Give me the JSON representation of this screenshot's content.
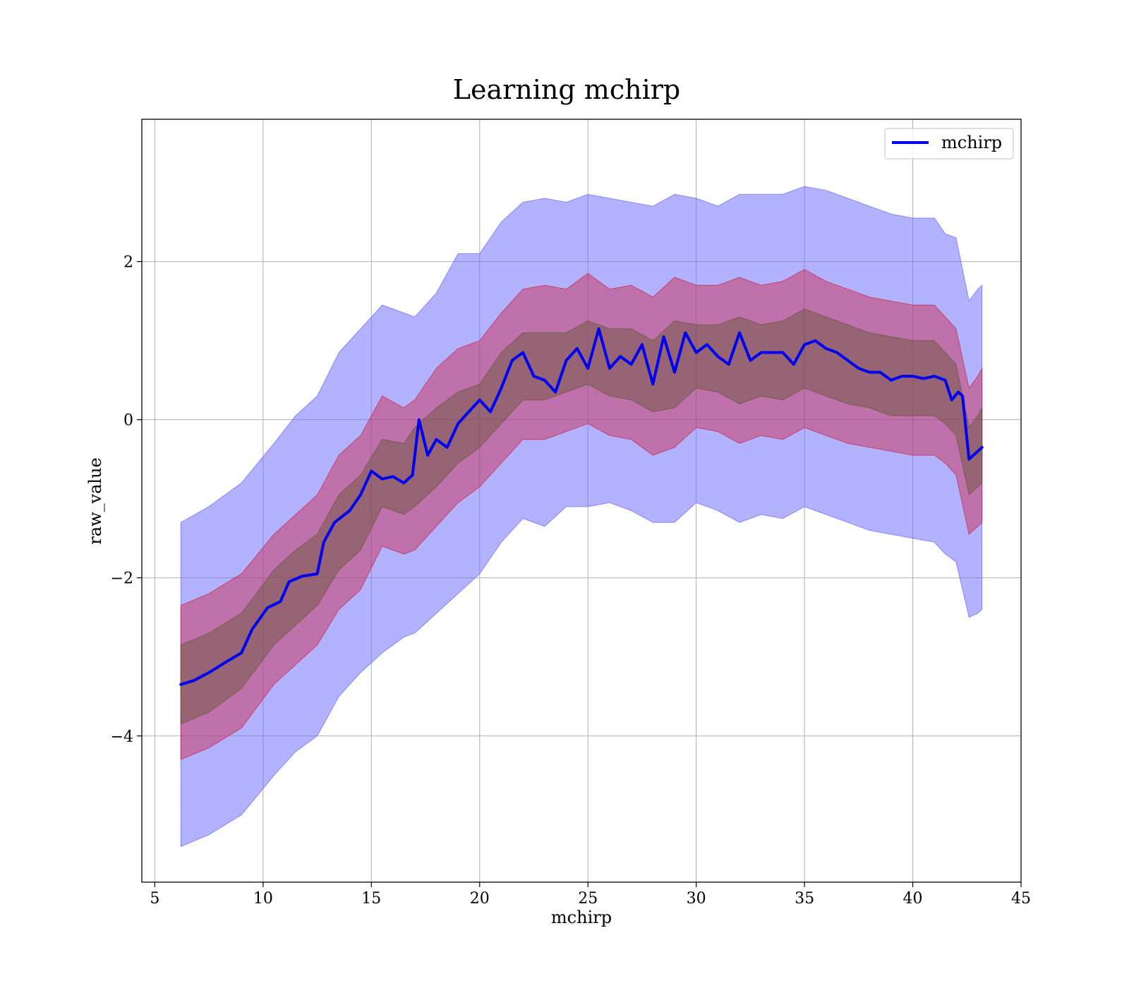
{
  "chart_data": {
    "type": "line",
    "title": "Learning mchirp",
    "xlabel": "mchirp",
    "ylabel": "raw_value",
    "xlim": [
      4.4,
      45
    ],
    "ylim": [
      -5.85,
      3.8
    ],
    "xticks": [
      5,
      10,
      15,
      20,
      25,
      30,
      35,
      40,
      45
    ],
    "xtick_labels": [
      "5",
      "10",
      "15",
      "20",
      "25",
      "30",
      "35",
      "40",
      "45"
    ],
    "yticks": [
      -4,
      -2,
      0,
      2
    ],
    "ytick_labels": [
      "−4",
      "−2",
      "0",
      "2"
    ],
    "grid": true,
    "legend_position": "top-right",
    "series": [
      {
        "name": "mchirp",
        "color": "#0000ee",
        "x": [
          6.2,
          6.8,
          7.5,
          8.2,
          9.0,
          9.5,
          10.2,
          10.8,
          11.2,
          11.8,
          12.5,
          12.8,
          13.3,
          14.0,
          14.5,
          15.0,
          15.5,
          16.0,
          16.5,
          16.9,
          17.2,
          17.6,
          18.0,
          18.5,
          19.0,
          19.5,
          20.0,
          20.5,
          21.0,
          21.5,
          22.0,
          22.5,
          23.0,
          23.5,
          24.0,
          24.5,
          25.0,
          25.5,
          26.0,
          26.5,
          27.0,
          27.5,
          28.0,
          28.5,
          29.0,
          29.5,
          30.0,
          30.5,
          31.0,
          31.5,
          32.0,
          32.5,
          33.0,
          33.5,
          34.0,
          34.5,
          35.0,
          35.5,
          36.0,
          36.5,
          37.0,
          37.5,
          38.0,
          38.5,
          39.0,
          39.5,
          40.0,
          40.5,
          41.0,
          41.5,
          41.8,
          42.1,
          42.3,
          42.6,
          43.0,
          43.2
        ],
        "y": [
          -3.35,
          -3.3,
          -3.2,
          -3.08,
          -2.95,
          -2.65,
          -2.38,
          -2.3,
          -2.05,
          -1.98,
          -1.95,
          -1.55,
          -1.3,
          -1.15,
          -0.95,
          -0.65,
          -0.75,
          -0.72,
          -0.8,
          -0.7,
          0.0,
          -0.45,
          -0.25,
          -0.35,
          -0.05,
          0.1,
          0.25,
          0.1,
          0.4,
          0.75,
          0.85,
          0.55,
          0.5,
          0.35,
          0.75,
          0.9,
          0.65,
          1.15,
          0.65,
          0.8,
          0.7,
          0.95,
          0.45,
          1.05,
          0.6,
          1.1,
          0.85,
          0.95,
          0.8,
          0.7,
          1.1,
          0.75,
          0.85,
          0.85,
          0.85,
          0.7,
          0.95,
          1.0,
          0.9,
          0.85,
          0.75,
          0.65,
          0.6,
          0.6,
          0.5,
          0.55,
          0.55,
          0.52,
          0.55,
          0.5,
          0.25,
          0.35,
          0.3,
          -0.5,
          -0.4,
          -0.35
        ]
      }
    ],
    "bands": [
      {
        "color": "#6666ff",
        "opacity": 0.5,
        "x": [
          6.2,
          7.5,
          9.0,
          10.5,
          11.5,
          12.5,
          13.5,
          14.5,
          15.5,
          16.5,
          17.0,
          18.0,
          19.0,
          20.0,
          21.0,
          22.0,
          23.0,
          24.0,
          25.0,
          26.0,
          27.0,
          28.0,
          29.0,
          30.0,
          31.0,
          32.0,
          33.0,
          34.0,
          35.0,
          36.0,
          37.0,
          38.0,
          39.0,
          40.0,
          41.0,
          41.5,
          42.0,
          42.6,
          43.0,
          43.2
        ],
        "upper": [
          -1.3,
          -1.1,
          -0.8,
          -0.3,
          0.05,
          0.3,
          0.85,
          1.15,
          1.45,
          1.35,
          1.3,
          1.6,
          2.1,
          2.1,
          2.5,
          2.75,
          2.8,
          2.75,
          2.85,
          2.8,
          2.75,
          2.7,
          2.85,
          2.8,
          2.7,
          2.85,
          2.85,
          2.85,
          2.95,
          2.9,
          2.8,
          2.7,
          2.6,
          2.55,
          2.55,
          2.35,
          2.3,
          1.5,
          1.65,
          1.7
        ],
        "lower": [
          -5.4,
          -5.25,
          -5.0,
          -4.5,
          -4.2,
          -4.0,
          -3.5,
          -3.2,
          -2.95,
          -2.75,
          -2.7,
          -2.45,
          -2.2,
          -1.95,
          -1.55,
          -1.25,
          -1.35,
          -1.1,
          -1.1,
          -1.05,
          -1.15,
          -1.3,
          -1.3,
          -1.05,
          -1.15,
          -1.3,
          -1.2,
          -1.25,
          -1.1,
          -1.2,
          -1.3,
          -1.4,
          -1.45,
          -1.5,
          -1.55,
          -1.7,
          -1.8,
          -2.5,
          -2.45,
          -2.4
        ]
      },
      {
        "color": "#cc2244",
        "opacity": 0.45,
        "x": [
          6.2,
          7.5,
          9.0,
          10.5,
          11.5,
          12.5,
          13.5,
          14.5,
          15.5,
          16.5,
          17.0,
          18.0,
          19.0,
          20.0,
          21.0,
          22.0,
          23.0,
          24.0,
          25.0,
          26.0,
          27.0,
          28.0,
          29.0,
          30.0,
          31.0,
          32.0,
          33.0,
          34.0,
          35.0,
          36.0,
          37.0,
          38.0,
          39.0,
          40.0,
          41.0,
          41.5,
          42.0,
          42.6,
          43.0,
          43.2
        ],
        "upper": [
          -2.35,
          -2.2,
          -1.95,
          -1.45,
          -1.2,
          -0.95,
          -0.45,
          -0.2,
          0.3,
          0.15,
          0.25,
          0.65,
          0.9,
          1.0,
          1.35,
          1.65,
          1.7,
          1.65,
          1.85,
          1.65,
          1.7,
          1.55,
          1.8,
          1.7,
          1.7,
          1.8,
          1.7,
          1.75,
          1.9,
          1.75,
          1.65,
          1.55,
          1.5,
          1.45,
          1.45,
          1.3,
          1.15,
          0.4,
          0.55,
          0.65
        ],
        "lower": [
          -4.3,
          -4.15,
          -3.9,
          -3.35,
          -3.1,
          -2.85,
          -2.4,
          -2.15,
          -1.6,
          -1.7,
          -1.65,
          -1.35,
          -1.05,
          -0.85,
          -0.55,
          -0.25,
          -0.25,
          -0.15,
          -0.05,
          -0.2,
          -0.25,
          -0.45,
          -0.35,
          -0.1,
          -0.15,
          -0.3,
          -0.2,
          -0.25,
          -0.1,
          -0.2,
          -0.3,
          -0.35,
          -0.4,
          -0.45,
          -0.45,
          -0.55,
          -0.7,
          -1.45,
          -1.35,
          -1.3
        ]
      },
      {
        "color": "#665533",
        "opacity": 0.45,
        "x": [
          6.2,
          7.5,
          9.0,
          10.5,
          11.5,
          12.5,
          13.5,
          14.5,
          15.5,
          16.5,
          17.0,
          18.0,
          19.0,
          20.0,
          21.0,
          22.0,
          23.0,
          24.0,
          25.0,
          26.0,
          27.0,
          28.0,
          29.0,
          30.0,
          31.0,
          32.0,
          33.0,
          34.0,
          35.0,
          36.0,
          37.0,
          38.0,
          39.0,
          40.0,
          41.0,
          41.5,
          42.0,
          42.6,
          43.0,
          43.2
        ],
        "upper": [
          -2.85,
          -2.7,
          -2.45,
          -1.9,
          -1.65,
          -1.45,
          -0.95,
          -0.7,
          -0.25,
          -0.3,
          -0.1,
          0.15,
          0.35,
          0.45,
          0.85,
          1.1,
          1.1,
          1.1,
          1.25,
          1.15,
          1.15,
          1.0,
          1.25,
          1.2,
          1.2,
          1.3,
          1.2,
          1.25,
          1.4,
          1.3,
          1.2,
          1.1,
          1.05,
          1.0,
          1.0,
          0.85,
          0.7,
          -0.1,
          0.05,
          0.15
        ],
        "lower": [
          -3.85,
          -3.7,
          -3.4,
          -2.85,
          -2.6,
          -2.35,
          -1.9,
          -1.65,
          -1.1,
          -1.2,
          -1.1,
          -0.85,
          -0.55,
          -0.35,
          -0.05,
          0.25,
          0.25,
          0.35,
          0.45,
          0.3,
          0.25,
          0.1,
          0.15,
          0.4,
          0.35,
          0.2,
          0.3,
          0.25,
          0.4,
          0.3,
          0.2,
          0.15,
          0.05,
          0.05,
          0.05,
          -0.05,
          -0.2,
          -0.95,
          -0.85,
          -0.8
        ]
      }
    ]
  }
}
